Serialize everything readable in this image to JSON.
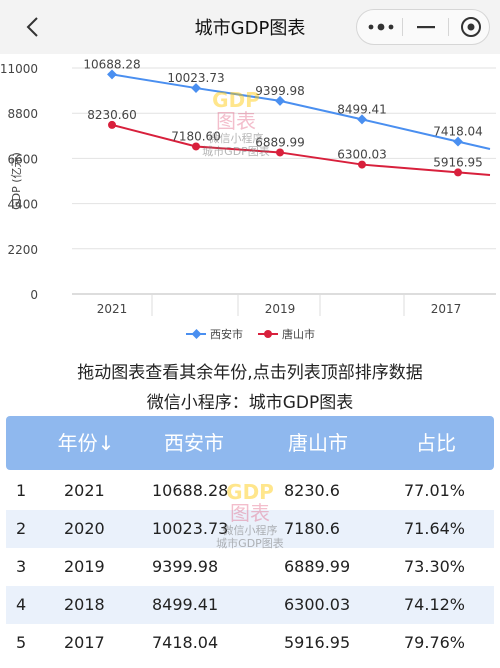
{
  "header": {
    "title": "城市GDP图表",
    "back_icon": "chevron-left-icon",
    "more_icon": "more-dots-icon",
    "minimize_icon": "minimize-icon",
    "close_icon": "target-circle-icon"
  },
  "watermark": {
    "line1": "GDP",
    "line2": "图表",
    "line3": "微信小程序",
    "line4": "城市GDP图表"
  },
  "chart_data": {
    "type": "line",
    "x": [
      "2021",
      "2020",
      "2019",
      "2018",
      "2017"
    ],
    "x_tick_labels": [
      "2021",
      "2019",
      "2017"
    ],
    "ylabel": "GDP (亿元)",
    "ylim": [
      0,
      11000
    ],
    "y_ticks": [
      "0",
      "2200",
      "4400",
      "6600",
      "8800",
      "11000"
    ],
    "series": [
      {
        "name": "西安市",
        "color": "#4a8ff0",
        "values": [
          10688.28,
          10023.73,
          9399.98,
          8499.41,
          7418.04
        ],
        "labels": [
          "10688.28",
          "10023.73",
          "9399.98",
          "8499.41",
          "7418.04"
        ]
      },
      {
        "name": "唐山市",
        "color": "#d8203c",
        "values": [
          8230.6,
          7180.6,
          6889.99,
          6300.03,
          5916.95
        ],
        "labels": [
          "8230.60",
          "7180.60",
          "6889.99",
          "6300.03",
          "5916.95"
        ]
      }
    ],
    "grid": "horizontal",
    "legend_position": "bottom"
  },
  "info": {
    "line1": "拖动图表查看其余年份,点击列表顶部排序数据",
    "line2": "微信小程序：城市GDP图表"
  },
  "table": {
    "headers": [
      "年份↓",
      "西安市",
      "唐山市",
      "占比"
    ],
    "rows": [
      {
        "idx": "1",
        "year": "2021",
        "a": "10688.28",
        "b": "8230.6",
        "ratio": "77.01%"
      },
      {
        "idx": "2",
        "year": "2020",
        "a": "10023.73",
        "b": "7180.6",
        "ratio": "71.64%"
      },
      {
        "idx": "3",
        "year": "2019",
        "a": "9399.98",
        "b": "6889.99",
        "ratio": "73.30%"
      },
      {
        "idx": "4",
        "year": "2018",
        "a": "8499.41",
        "b": "6300.03",
        "ratio": "74.12%"
      },
      {
        "idx": "5",
        "year": "2017",
        "a": "7418.04",
        "b": "5916.95",
        "ratio": "79.76%"
      }
    ]
  }
}
